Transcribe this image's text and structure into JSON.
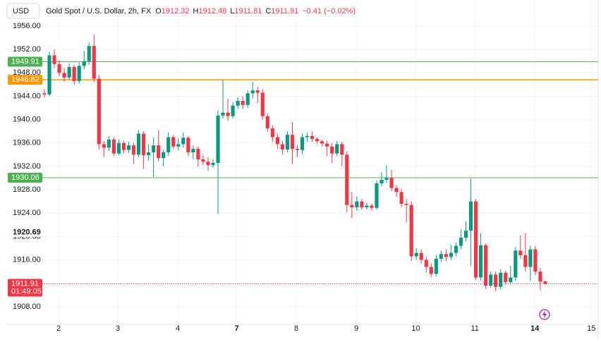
{
  "chart_data": {
    "type": "candlestick",
    "symbol": "USD",
    "title": "Gold Spot / U.S. Dollar, 2h, FX",
    "ohlc_legend": [
      {
        "key": "O",
        "value": 1912.32
      },
      {
        "key": "H",
        "value": 1912.48
      },
      {
        "key": "L",
        "value": 1911.81
      },
      {
        "key": "C",
        "value": 1911.91
      }
    ],
    "change": "−0.41 (−0.02%)",
    "up_color": "#089981",
    "down_color": "#f23645",
    "x": [
      0,
      1,
      2,
      3,
      4,
      5,
      6,
      7,
      8,
      9,
      10,
      11,
      12,
      13,
      14,
      15,
      16,
      17,
      18,
      19,
      20,
      21,
      22,
      23,
      24,
      25,
      26,
      27,
      28,
      29,
      30,
      31,
      32,
      33,
      34,
      35,
      36,
      37,
      38,
      39,
      40,
      41,
      42,
      43,
      44,
      45,
      46,
      47,
      48,
      49,
      50,
      51,
      52,
      53,
      54,
      55,
      56,
      57,
      58,
      59,
      60,
      61,
      62,
      63,
      64,
      65,
      66,
      67,
      68,
      69,
      70,
      71,
      72,
      73,
      74,
      75,
      76,
      77,
      78,
      79,
      80,
      81,
      82,
      83,
      84,
      85,
      86,
      87,
      88,
      89,
      90,
      91,
      92,
      93,
      94,
      95,
      96,
      97,
      98,
      99,
      100,
      101
    ],
    "open": [
      1944.5,
      1944.3,
      1951.0,
      1949.5,
      1948.0,
      1947.2,
      1949.0,
      1946.6,
      1949.2,
      1950.0,
      1952.6,
      1947.0,
      1935.8,
      1935.2,
      1936.6,
      1934.2,
      1936.0,
      1934.8,
      1935.6,
      1934.0,
      1937.6,
      1933.9,
      1934.4,
      1935.6,
      1933.4,
      1934.4,
      1937.0,
      1935.4,
      1935.8,
      1936.9,
      1934.4,
      1935.0,
      1933.2,
      1932.8,
      1932.2,
      1932.6,
      1940.7,
      1941.2,
      1940.6,
      1942.4,
      1943.2,
      1942.5,
      1944.5,
      1945.0,
      1944.6,
      1940.6,
      1938.5,
      1937.0,
      1935.8,
      1934.9,
      1937.4,
      1935.0,
      1934.8,
      1937.0,
      1937.2,
      1936.7,
      1936.3,
      1935.9,
      1935.4,
      1934.2,
      1935.8,
      1934.0,
      1925.4,
      1925.0,
      1926.0,
      1925.0,
      1925.3,
      1924.9,
      1929.1,
      1929.7,
      1930.0,
      1928.3,
      1927.6,
      1925.6,
      1925.4,
      1916.6,
      1917.2,
      1916.0,
      1914.8,
      1913.6,
      1916.2,
      1917.0,
      1916.5,
      1917.2,
      1918.4,
      1919.8,
      1921.0,
      1926.0,
      1913.0,
      1918.5,
      1911.6,
      1913.5,
      1911.4,
      1913.8,
      1912.2,
      1913.0,
      1917.6,
      1916.8,
      1914.8,
      1917.8,
      1914.0,
      1912.32
    ],
    "high": [
      1945.2,
      1951.6,
      1952.0,
      1950.2,
      1948.8,
      1949.6,
      1949.4,
      1949.8,
      1951.8,
      1953.2,
      1954.5,
      1947.6,
      1936.4,
      1937.2,
      1937.0,
      1936.6,
      1936.4,
      1936.2,
      1936.0,
      1938.2,
      1938.0,
      1935.8,
      1937.0,
      1938.2,
      1934.9,
      1937.8,
      1937.4,
      1936.8,
      1937.8,
      1937.2,
      1935.6,
      1935.4,
      1934.0,
      1933.6,
      1933.2,
      1941.6,
      1946.8,
      1943.6,
      1943.0,
      1943.8,
      1944.0,
      1945.0,
      1946.5,
      1945.6,
      1945.2,
      1941.0,
      1939.0,
      1937.6,
      1936.4,
      1938.0,
      1939.6,
      1935.6,
      1937.6,
      1937.8,
      1938.0,
      1937.0,
      1936.6,
      1936.4,
      1936.0,
      1936.4,
      1936.2,
      1934.6,
      1927.6,
      1926.8,
      1926.4,
      1925.8,
      1925.6,
      1929.6,
      1931.0,
      1932.2,
      1931.4,
      1928.8,
      1928.2,
      1926.4,
      1926.0,
      1918.0,
      1917.8,
      1916.6,
      1915.4,
      1916.8,
      1917.6,
      1917.8,
      1918.6,
      1919.0,
      1921.2,
      1922.6,
      1929.9,
      1926.4,
      1920.6,
      1918.8,
      1914.0,
      1914.0,
      1914.4,
      1914.2,
      1915.0,
      1918.2,
      1920.2,
      1920.6,
      1918.4,
      1918.4,
      1914.6,
      1912.48
    ],
    "low": [
      1943.8,
      1944.0,
      1948.8,
      1947.4,
      1946.5,
      1946.8,
      1946.0,
      1946.2,
      1948.6,
      1949.4,
      1946.4,
      1934.9,
      1933.6,
      1934.6,
      1933.8,
      1933.9,
      1934.2,
      1934.3,
      1932.4,
      1933.6,
      1931.6,
      1933.0,
      1930.2,
      1932.9,
      1932.0,
      1933.8,
      1935.0,
      1934.8,
      1935.2,
      1933.8,
      1933.2,
      1932.0,
      1932.2,
      1931.2,
      1931.8,
      1923.9,
      1940.2,
      1939.8,
      1940.2,
      1941.8,
      1941.8,
      1942.0,
      1943.6,
      1942.8,
      1940.0,
      1938.0,
      1936.2,
      1935.0,
      1934.0,
      1934.4,
      1932.4,
      1933.6,
      1934.0,
      1936.2,
      1936.2,
      1935.8,
      1935.4,
      1933.8,
      1932.6,
      1933.8,
      1932.0,
      1924.2,
      1923.2,
      1924.4,
      1924.6,
      1924.6,
      1924.4,
      1924.6,
      1928.6,
      1929.2,
      1927.8,
      1926.8,
      1925.0,
      1922.4,
      1915.8,
      1916.0,
      1915.4,
      1913.8,
      1913.0,
      1913.2,
      1915.6,
      1915.8,
      1916.0,
      1916.6,
      1917.8,
      1919.2,
      1915.0,
      1912.6,
      1912.4,
      1911.0,
      1911.2,
      1910.6,
      1911.0,
      1911.8,
      1911.8,
      1912.4,
      1916.2,
      1914.0,
      1912.4,
      1913.4,
      1910.8,
      1911.81
    ],
    "close": [
      1944.3,
      1951.0,
      1949.5,
      1948.0,
      1947.2,
      1949.0,
      1946.6,
      1949.2,
      1950.0,
      1952.6,
      1947.0,
      1935.8,
      1935.2,
      1936.6,
      1934.2,
      1936.0,
      1934.8,
      1935.6,
      1934.0,
      1937.6,
      1933.9,
      1934.4,
      1935.6,
      1933.4,
      1934.4,
      1937.0,
      1935.4,
      1935.8,
      1936.9,
      1934.4,
      1935.0,
      1933.2,
      1932.8,
      1932.2,
      1932.6,
      1940.7,
      1941.2,
      1940.6,
      1942.4,
      1943.2,
      1942.5,
      1944.5,
      1945.0,
      1944.6,
      1940.6,
      1938.5,
      1937.0,
      1935.8,
      1934.9,
      1937.4,
      1935.0,
      1934.8,
      1937.0,
      1937.2,
      1936.7,
      1936.3,
      1935.9,
      1935.4,
      1934.2,
      1935.8,
      1934.0,
      1925.4,
      1925.0,
      1926.0,
      1925.0,
      1925.3,
      1924.9,
      1929.1,
      1929.7,
      1930.0,
      1928.3,
      1927.6,
      1925.6,
      1925.4,
      1916.6,
      1917.2,
      1916.0,
      1914.8,
      1913.6,
      1916.2,
      1917.0,
      1916.5,
      1917.2,
      1918.4,
      1919.8,
      1921.0,
      1926.0,
      1913.0,
      1918.5,
      1911.6,
      1913.5,
      1911.4,
      1913.8,
      1912.2,
      1913.0,
      1917.6,
      1916.8,
      1914.8,
      1917.8,
      1914.0,
      1912.3,
      1911.91
    ],
    "xlim": [
      -7.82,
      111.67
    ],
    "xticks": [
      {
        "value": 2.85,
        "label": "2"
      },
      {
        "value": 14.8,
        "label": "3"
      },
      {
        "value": 26.9,
        "label": "4"
      },
      {
        "value": 38.8,
        "label": "7"
      },
      {
        "value": 50.8,
        "label": "8"
      },
      {
        "value": 62.9,
        "label": "9"
      },
      {
        "value": 74.9,
        "label": "10"
      },
      {
        "value": 86.8,
        "label": "11"
      },
      {
        "value": 98.9,
        "label": "14"
      },
      {
        "value": 110.3,
        "label": "15"
      }
    ],
    "ylim": [
      1904.97,
      1957.45
    ],
    "yticks": [
      {
        "value": 1908,
        "label": "1908.00"
      },
      {
        "value": 1912,
        "label": "1912.00"
      },
      {
        "value": 1916,
        "label": "1916.00"
      },
      {
        "value": 1920,
        "label": "1920.00"
      },
      {
        "value": 1924,
        "label": "1924.00"
      },
      {
        "value": 1928,
        "label": "1928.00"
      },
      {
        "value": 1932,
        "label": "1932.00"
      },
      {
        "value": 1936,
        "label": "1936.00"
      },
      {
        "value": 1940,
        "label": "1940.00"
      },
      {
        "value": 1944,
        "label": "1944.00"
      },
      {
        "value": 1948,
        "label": "1948.00"
      },
      {
        "value": 1952,
        "label": "1952.00"
      },
      {
        "value": 1956,
        "label": "1956.00"
      }
    ],
    "grid": true,
    "price_lines": [
      {
        "value": 1949.91,
        "color": "#4caf50"
      },
      {
        "value": 1946.82,
        "color": "#ff9800"
      },
      {
        "value": 1930.06,
        "color": "#4caf50"
      }
    ],
    "last_price": {
      "value": 1911.91,
      "countdown": "01:49:05",
      "color": "#f23645"
    },
    "crosshair_price": 1920.69
  }
}
